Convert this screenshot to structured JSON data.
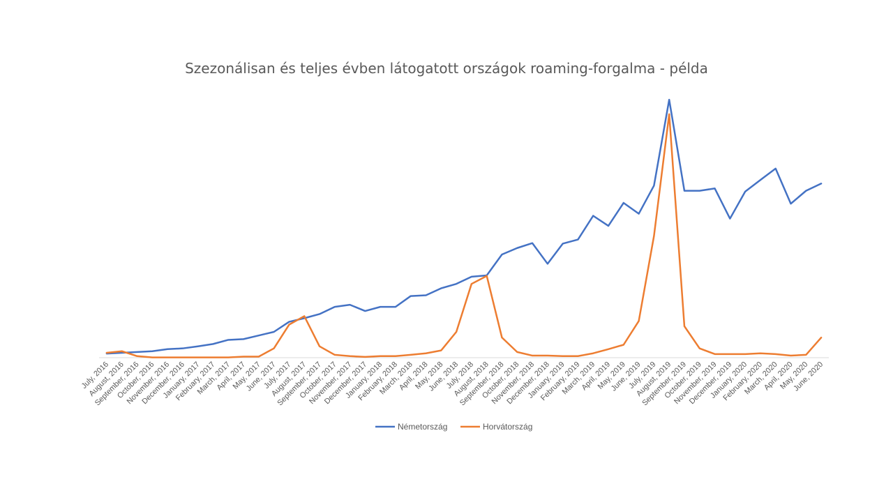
{
  "chart_data": {
    "type": "line",
    "title": "Szezonálisan és teljes évben látogatott országok roaming-forgalma  - példa",
    "xlabel": "",
    "ylabel": "",
    "ylim": [
      0,
      100
    ],
    "grid": false,
    "legend_position": "bottom",
    "categories": [
      "July, 2016",
      "August, 2016",
      "September, 2016",
      "October, 2016",
      "November, 2016",
      "December, 2016",
      "January, 2017",
      "February, 2017",
      "March, 2017",
      "April, 2017",
      "May, 2017",
      "June, 2017",
      "July, 2017",
      "August, 2017",
      "September, 2017",
      "October, 2017",
      "November, 2017",
      "December, 2017",
      "January, 2018",
      "February, 2018",
      "March, 2018",
      "April, 2018",
      "May, 2018",
      "June, 2018",
      "July, 2018",
      "August, 2018",
      "September, 2018",
      "October, 2018",
      "November, 2018",
      "December, 2018",
      "January, 2019",
      "February, 2019",
      "March, 2019",
      "April, 2019",
      "May, 2019",
      "June, 2019",
      "July, 2019",
      "August, 2019",
      "September, 2019",
      "October, 2019",
      "November, 2019",
      "December, 2019",
      "January, 2020",
      "February, 2020",
      "March, 2020",
      "April, 2020",
      "May, 2020",
      "June, 2020"
    ],
    "series": [
      {
        "name": "Németország",
        "color": "#4472C4",
        "values": [
          1.6,
          1.9,
          2.2,
          2.5,
          3.3,
          3.6,
          4.4,
          5.3,
          6.9,
          7.2,
          8.6,
          10.0,
          13.9,
          15.3,
          16.9,
          19.7,
          20.5,
          18.1,
          19.7,
          19.7,
          23.9,
          24.2,
          26.9,
          28.6,
          31.4,
          31.9,
          40.0,
          42.5,
          44.4,
          36.4,
          44.2,
          45.8,
          55.0,
          51.1,
          60.0,
          55.8,
          66.7,
          100.0,
          64.7,
          64.7,
          65.6,
          53.9,
          64.4,
          68.9,
          73.3,
          59.7,
          64.7,
          67.5
        ]
      },
      {
        "name": "Horvátország",
        "color": "#ED7D31",
        "values": [
          1.9,
          2.5,
          0.6,
          0.1,
          0.1,
          0.1,
          0.1,
          0.1,
          0.1,
          0.4,
          0.4,
          3.6,
          12.8,
          16.1,
          4.4,
          1.1,
          0.6,
          0.3,
          0.6,
          0.6,
          1.1,
          1.7,
          2.8,
          10.0,
          28.6,
          31.7,
          7.8,
          2.2,
          0.8,
          0.8,
          0.6,
          0.6,
          1.7,
          3.3,
          5.0,
          14.2,
          47.2,
          94.4,
          12.2,
          3.6,
          1.4,
          1.4,
          1.4,
          1.7,
          1.4,
          0.8,
          1.1,
          7.8
        ]
      }
    ]
  }
}
